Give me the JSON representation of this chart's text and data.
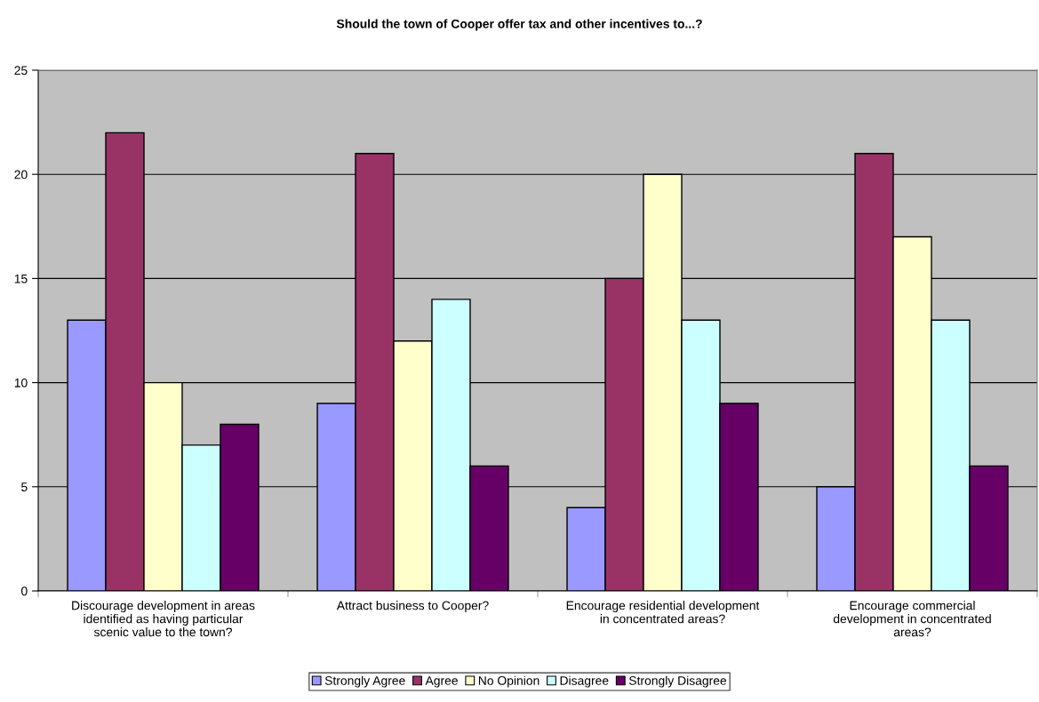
{
  "chart_data": {
    "type": "bar",
    "title": "Should the town of Cooper offer tax and other incentives to...?",
    "categories": [
      "Discourage development in areas\nidentified as having particular\nscenic value to the town?",
      "Attract business to Cooper?",
      "Encourage residential development\nin concentrated areas?",
      "Encourage commercial\ndevelopment in concentrated\nareas?"
    ],
    "series": [
      {
        "name": "Strongly Agree",
        "color": "#9999ff",
        "values": [
          13,
          9,
          4,
          5
        ]
      },
      {
        "name": "Agree",
        "color": "#993366",
        "values": [
          22,
          21,
          15,
          21
        ]
      },
      {
        "name": "No Opinion",
        "color": "#ffffcc",
        "values": [
          10,
          12,
          20,
          17
        ]
      },
      {
        "name": "Disagree",
        "color": "#ccffff",
        "values": [
          7,
          14,
          13,
          13
        ]
      },
      {
        "name": "Strongly Disagree",
        "color": "#660066",
        "values": [
          8,
          6,
          9,
          6
        ]
      }
    ],
    "ylim": [
      0,
      25
    ],
    "yticks": [
      0,
      5,
      10,
      15,
      20,
      25
    ],
    "grid": "y",
    "legend": "bottom"
  }
}
